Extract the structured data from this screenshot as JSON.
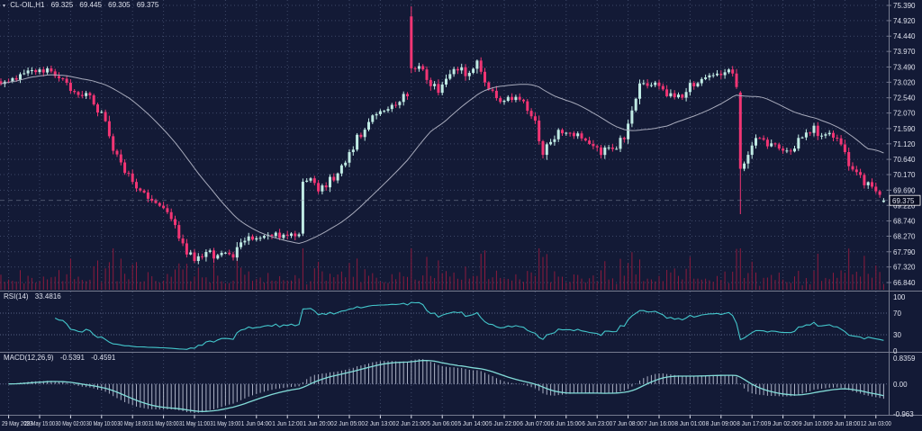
{
  "header": {
    "marker": "▾",
    "symbol": "CL-OIL,H1",
    "open": "69.325",
    "high": "69.445",
    "low": "69.305",
    "close": "69.375"
  },
  "indicators": {
    "rsi": {
      "name": "RSI(14)",
      "value": "33.4816"
    },
    "macd": {
      "name": "MACD(12,26,9)",
      "value_main": "-0.5391",
      "value_signal": "-0.4591"
    }
  },
  "chart_data": {
    "type": "candlestick",
    "title": "CL-OIL H1 candlestick chart with moving average, tick volume, RSI(14) and MACD(12,26,9) panels",
    "symbol": "CL-OIL",
    "timeframe": "H1",
    "last_bar": {
      "open": 69.325,
      "high": 69.445,
      "low": 69.305,
      "close": 69.375
    },
    "current_price_label": "69.375",
    "price_axis_ticks": [
      "75.390",
      "74.920",
      "74.440",
      "73.970",
      "73.490",
      "73.020",
      "72.540",
      "72.070",
      "71.590",
      "71.120",
      "70.640",
      "70.170",
      "69.690",
      "69.220",
      "68.740",
      "68.270",
      "67.790",
      "67.320",
      "66.840"
    ],
    "rsi_axis_ticks": [
      "100",
      "70",
      "30",
      "0"
    ],
    "rsi_levels": [
      70,
      30
    ],
    "rsi_last": 33.4816,
    "macd_axis_ticks": [
      "0.8359",
      "0.00",
      "-0.963"
    ],
    "macd_last": -0.5391,
    "macd_signal_last": -0.4591,
    "time_axis_labels": [
      "29 May 2023",
      "29 May 15:00",
      "30 May 02:00",
      "30 May 10:00",
      "30 May 18:00",
      "31 May 03:00",
      "31 May 11:00",
      "31 May 19:00",
      "1 Jun 04:00",
      "1 Jun 12:00",
      "1 Jun 20:00",
      "2 Jun 05:00",
      "2 Jun 13:00",
      "2 Jun 21:00",
      "5 Jun 06:00",
      "5 Jun 14:00",
      "5 Jun 22:00",
      "6 Jun 07:00",
      "6 Jun 15:00",
      "6 Jun 23:00",
      "7 Jun 08:00",
      "7 Jun 16:00",
      "8 Jun 01:00",
      "8 Jun 09:00",
      "8 Jun 17:00",
      "9 Jun 02:00",
      "9 Jun 10:00",
      "9 Jun 18:00",
      "12 Jun 03:00"
    ],
    "num_candles": 229,
    "candles_per_label": 8,
    "first_label_candle": 2,
    "moving_average_period": 34,
    "price_anchors": [
      [
        0,
        73.0
      ],
      [
        7,
        73.3
      ],
      [
        13,
        73.42
      ],
      [
        17,
        72.95
      ],
      [
        23,
        72.5
      ],
      [
        27,
        71.95
      ],
      [
        29,
        71.05
      ],
      [
        32,
        70.35
      ],
      [
        36,
        69.65
      ],
      [
        39,
        69.42
      ],
      [
        43,
        68.95
      ],
      [
        46,
        68.25
      ],
      [
        50,
        67.45
      ],
      [
        53,
        67.95
      ],
      [
        55,
        67.55
      ],
      [
        58,
        67.72
      ],
      [
        60,
        67.55
      ],
      [
        63,
        68.22
      ],
      [
        67,
        68.18
      ],
      [
        70,
        68.38
      ],
      [
        73,
        68.25
      ],
      [
        77,
        68.32
      ],
      [
        78,
        69.95
      ],
      [
        80,
        70.1
      ],
      [
        82,
        69.7
      ],
      [
        85,
        69.98
      ],
      [
        88,
        70.5
      ],
      [
        91,
        71.1
      ],
      [
        95,
        71.7
      ],
      [
        98,
        72.1
      ],
      [
        102,
        72.35
      ],
      [
        105,
        72.6
      ],
      [
        106,
        73.45
      ],
      [
        108,
        73.52
      ],
      [
        110,
        73.18
      ],
      [
        113,
        72.75
      ],
      [
        115,
        73.08
      ],
      [
        118,
        73.55
      ],
      [
        120,
        73.3
      ],
      [
        123,
        73.6
      ],
      [
        126,
        72.9
      ],
      [
        129,
        72.35
      ],
      [
        132,
        72.55
      ],
      [
        135,
        72.45
      ],
      [
        138,
        71.8
      ],
      [
        140,
        70.85
      ],
      [
        142,
        71.2
      ],
      [
        145,
        71.55
      ],
      [
        149,
        71.4
      ],
      [
        152,
        71.18
      ],
      [
        155,
        70.9
      ],
      [
        158,
        71.0
      ],
      [
        161,
        71.3
      ],
      [
        163,
        72.3
      ],
      [
        165,
        72.9
      ],
      [
        169,
        73.0
      ],
      [
        172,
        72.7
      ],
      [
        175,
        72.6
      ],
      [
        179,
        73.0
      ],
      [
        182,
        73.1
      ],
      [
        186,
        73.3
      ],
      [
        188,
        73.55
      ],
      [
        190,
        72.8
      ],
      [
        191,
        70.35
      ],
      [
        193,
        70.9
      ],
      [
        195,
        71.3
      ],
      [
        198,
        71.1
      ],
      [
        201,
        70.95
      ],
      [
        204,
        70.9
      ],
      [
        207,
        71.3
      ],
      [
        210,
        71.55
      ],
      [
        212,
        71.4
      ],
      [
        214,
        71.45
      ],
      [
        217,
        71.0
      ],
      [
        219,
        70.5
      ],
      [
        221,
        70.15
      ],
      [
        224,
        69.8
      ],
      [
        226,
        69.5
      ],
      [
        228,
        69.375
      ]
    ],
    "candle_overrides": [
      {
        "idx": 78,
        "open": 68.35,
        "high": 70.05,
        "low": 68.28,
        "close": 69.95
      },
      {
        "idx": 106,
        "open": 75.05,
        "high": 75.36,
        "low": 73.3,
        "close": 73.45
      },
      {
        "idx": 191,
        "open": 72.7,
        "high": 72.75,
        "low": 68.95,
        "close": 70.35
      },
      {
        "idx": 228,
        "open": 69.325,
        "high": 69.445,
        "low": 69.305,
        "close": 69.375
      }
    ],
    "colors": {
      "background": "#131a36",
      "grid": "#3e4868",
      "grid_level": "#566083",
      "bull": "#c0ebe4",
      "bear": "#f23574",
      "ma": "#a8abbc",
      "volume": "#8c1a3e",
      "rsi": "#43c6cb",
      "macd_signal": "#82dcd8",
      "macd_hist": "#c6ccdf",
      "axis_text": "#dde0ec",
      "separator": "#767b90",
      "price_line": "#8a93a8",
      "price_tag_bg": "#0a0e22",
      "price_tag_border": "#ffffff"
    }
  }
}
